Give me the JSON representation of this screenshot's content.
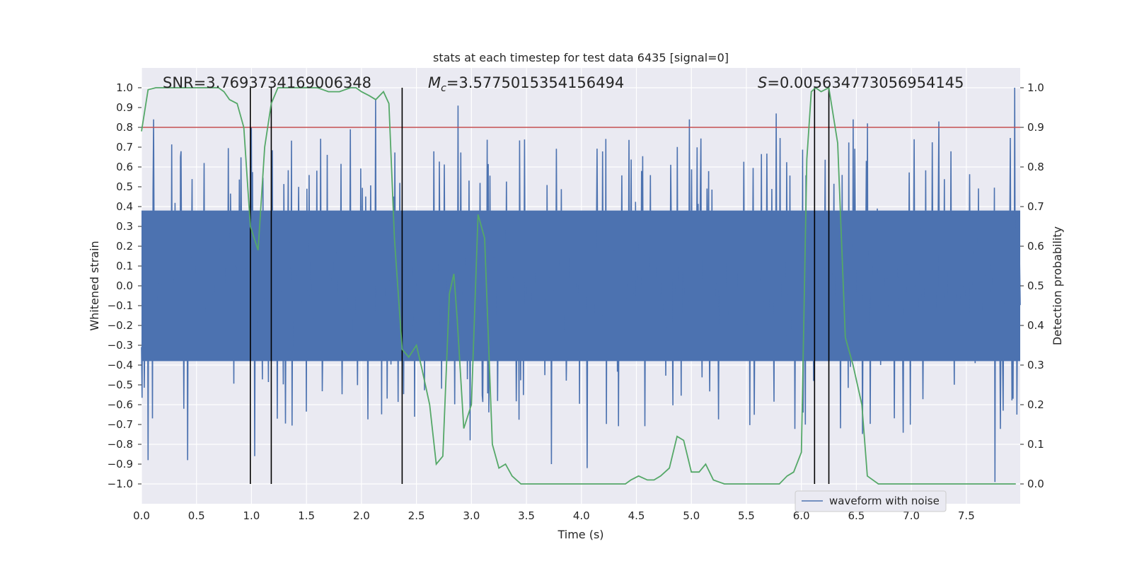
{
  "chart_data": {
    "type": "line",
    "title": "stats at each timestep for test data 6435 [signal=0]",
    "xlabel": "Time (s)",
    "ylabel": "Whitened strain",
    "ylabel_right": "Detection probability",
    "xlim": [
      0,
      7.99
    ],
    "ylim": [
      -1.1,
      1.1
    ],
    "ylim_right": [
      -0.05,
      1.05
    ],
    "x_ticks": [
      "0.0",
      "0.5",
      "1.0",
      "1.5",
      "2.0",
      "2.5",
      "3.0",
      "3.5",
      "4.0",
      "4.5",
      "5.0",
      "5.5",
      "6.0",
      "6.5",
      "7.0",
      "7.5"
    ],
    "y_ticks": [
      "1.0",
      "0.9",
      "0.8",
      "0.7",
      "0.6",
      "0.5",
      "0.4",
      "0.3",
      "0.2",
      "0.1",
      "0.0",
      "−0.1",
      "−0.2",
      "−0.3",
      "−0.4",
      "−0.5",
      "−0.6",
      "−0.7",
      "−0.8",
      "−0.9",
      "−1.0"
    ],
    "y_right_ticks": [
      "1.0",
      "0.9",
      "0.8",
      "0.7",
      "0.6",
      "0.5",
      "0.4",
      "0.3",
      "0.2",
      "0.1",
      "0.0"
    ],
    "annotations": {
      "snr": "SNR=3.7693734169006348",
      "mc_symbol": "M",
      "mc_sub": "c",
      "mc_value": "=3.5775015354156494",
      "s_symbol": "S",
      "s_value": "=0.005634773056954145"
    },
    "legend": {
      "label": "waveform with noise",
      "location": "lower-right"
    },
    "threshold_right": 0.9,
    "vertical_lines": [
      0.99,
      1.18,
      2.37,
      6.12,
      6.25
    ],
    "colors": {
      "background": "#eaeaf2",
      "grid": "#ffffff",
      "waveform": "#4c72b0",
      "probability": "#55a868",
      "threshold": "#c44e52",
      "vlines": "#000000"
    },
    "waveform": {
      "t_end": 7.99,
      "samples": 1600,
      "envelope": 0.38,
      "peaks": [
        {
          "t": 0.11,
          "v": 0.84
        },
        {
          "t": 0.06,
          "v": -0.88
        },
        {
          "t": 0.57,
          "v": 0.62
        },
        {
          "t": 0.42,
          "v": -0.88
        },
        {
          "t": 1.0,
          "v": 0.8
        },
        {
          "t": 1.03,
          "v": -0.86
        },
        {
          "t": 1.9,
          "v": 0.79
        },
        {
          "t": 2.13,
          "v": 0.94
        },
        {
          "t": 2.88,
          "v": 0.91
        },
        {
          "t": 2.99,
          "v": -0.78
        },
        {
          "t": 3.73,
          "v": -0.9
        },
        {
          "t": 4.05,
          "v": -0.92
        },
        {
          "t": 4.98,
          "v": 0.84
        },
        {
          "t": 5.77,
          "v": 0.87
        },
        {
          "t": 6.47,
          "v": 0.84
        },
        {
          "t": 6.6,
          "v": 0.82
        },
        {
          "t": 7.25,
          "v": 0.83
        },
        {
          "t": 7.76,
          "v": -0.99
        },
        {
          "t": 7.94,
          "v": 1.0
        },
        {
          "t": 7.96,
          "v": -0.65
        }
      ]
    },
    "probability": {
      "t": [
        0.0,
        0.06,
        0.13,
        0.2,
        0.3,
        0.4,
        0.5,
        0.6,
        0.7,
        0.75,
        0.8,
        0.87,
        0.93,
        0.99,
        1.06,
        1.12,
        1.18,
        1.24,
        1.31,
        1.4,
        1.5,
        1.6,
        1.7,
        1.8,
        1.9,
        1.95,
        2.0,
        2.07,
        2.13,
        2.2,
        2.25,
        2.3,
        2.37,
        2.43,
        2.5,
        2.55,
        2.62,
        2.68,
        2.74,
        2.8,
        2.84,
        2.87,
        2.93,
        3.0,
        3.06,
        3.12,
        3.19,
        3.25,
        3.31,
        3.37,
        3.45,
        3.6,
        3.8,
        4.0,
        4.2,
        4.4,
        4.45,
        4.52,
        4.6,
        4.66,
        4.72,
        4.8,
        4.87,
        4.93,
        5.0,
        5.07,
        5.13,
        5.2,
        5.3,
        5.4,
        5.5,
        5.6,
        5.7,
        5.8,
        5.87,
        5.93,
        6.0,
        6.05,
        6.09,
        6.13,
        6.18,
        6.25,
        6.33,
        6.4,
        6.47,
        6.55,
        6.6,
        6.7,
        6.8,
        6.9,
        7.0,
        7.2,
        7.4,
        7.6,
        7.8,
        7.95
      ],
      "p": [
        0.89,
        0.995,
        1.0,
        1.0,
        1.0,
        1.0,
        1.0,
        1.0,
        1.0,
        0.99,
        0.97,
        0.96,
        0.9,
        0.65,
        0.59,
        0.85,
        0.96,
        1.0,
        1.0,
        1.0,
        1.0,
        1.0,
        0.99,
        0.99,
        1.0,
        1.0,
        0.99,
        0.98,
        0.97,
        0.99,
        0.96,
        0.62,
        0.34,
        0.32,
        0.35,
        0.29,
        0.2,
        0.05,
        0.07,
        0.48,
        0.53,
        0.42,
        0.14,
        0.2,
        0.68,
        0.62,
        0.1,
        0.04,
        0.05,
        0.02,
        0.0,
        0.0,
        0.0,
        0.0,
        0.0,
        0.0,
        0.01,
        0.02,
        0.01,
        0.01,
        0.02,
        0.04,
        0.12,
        0.11,
        0.03,
        0.03,
        0.05,
        0.01,
        0.0,
        0.0,
        0.0,
        0.0,
        0.0,
        0.0,
        0.02,
        0.03,
        0.08,
        0.82,
        0.99,
        1.0,
        0.99,
        1.0,
        0.86,
        0.37,
        0.3,
        0.2,
        0.02,
        0.0,
        0.0,
        0.0,
        0.0,
        0.0,
        0.0,
        0.0,
        0.0,
        0.0
      ]
    }
  }
}
